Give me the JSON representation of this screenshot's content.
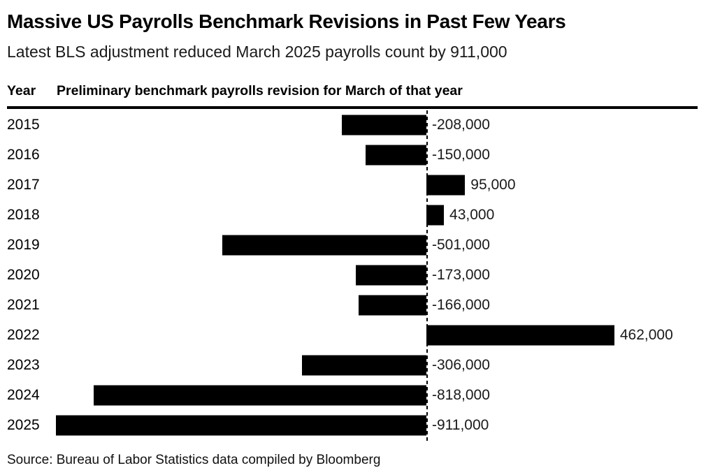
{
  "header": {
    "title": "Massive US Payrolls Benchmark Revisions in Past Few Years",
    "subtitle": "Latest BLS adjustment reduced March 2025 payrolls count by 911,000"
  },
  "table": {
    "year_column_label": "Year",
    "value_column_label": "Preliminary benchmark payrolls revision for March of that year"
  },
  "chart_data": {
    "type": "bar",
    "orientation": "horizontal",
    "title": "Massive US Payrolls Benchmark Revisions in Past Few Years",
    "subtitle": "Latest BLS adjustment reduced March 2025 payrolls count by 911,000",
    "xlabel": "Preliminary benchmark payrolls revision for March of that year",
    "ylabel": "Year",
    "categories": [
      "2015",
      "2016",
      "2017",
      "2018",
      "2019",
      "2020",
      "2021",
      "2022",
      "2023",
      "2024",
      "2025"
    ],
    "values": [
      -208000,
      -150000,
      95000,
      43000,
      -501000,
      -173000,
      -166000,
      462000,
      -306000,
      -818000,
      -911000
    ],
    "value_labels": [
      "-208,000",
      "-150,000",
      "95,000",
      "43,000",
      "-501,000",
      "-173,000",
      "-166,000",
      "462,000",
      "-306,000",
      "-818,000",
      "-911,000"
    ],
    "xlim": [
      -911000,
      462000
    ],
    "zero_baseline": "dashed",
    "grid": false,
    "legend": false,
    "bar_color": "#000000"
  },
  "footer": {
    "source": "Source: Bureau of Labor Statistics data compiled by Bloomberg"
  },
  "colors": {
    "background": "#ffffff",
    "bar": "#000000",
    "title_text": "#000000",
    "subtitle_text": "#1a1a1a",
    "value_text": "#1a1a1a"
  }
}
